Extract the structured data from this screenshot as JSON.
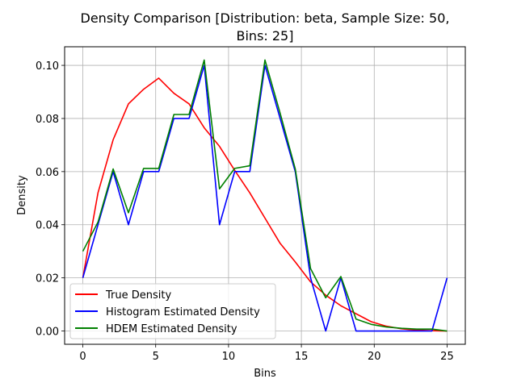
{
  "chart_data": {
    "type": "line",
    "title_line1": "Density Comparison [Distribution: beta, Sample Size: 50,",
    "title_line2": "Bins: 25]",
    "xlabel": "Bins",
    "ylabel": "Density",
    "xlim": [
      -1.25,
      26.25
    ],
    "ylim": [
      -0.005,
      0.107
    ],
    "x_ticks": [
      0,
      5,
      10,
      15,
      20,
      25
    ],
    "x_tick_labels": [
      "0",
      "5",
      "10",
      "15",
      "20",
      "25"
    ],
    "y_ticks": [
      0.0,
      0.02,
      0.04,
      0.06,
      0.08,
      0.1
    ],
    "y_tick_labels": [
      "0.00",
      "0.02",
      "0.04",
      "0.06",
      "0.08",
      "0.10"
    ],
    "grid": true,
    "legend_position": "lower-left",
    "series": [
      {
        "name": "True Density",
        "color": "#ff0000",
        "x": [
          0,
          1.04,
          2.08,
          3.13,
          4.17,
          5.21,
          6.25,
          7.29,
          8.33,
          9.38,
          10.42,
          11.46,
          12.5,
          13.54,
          14.58,
          15.63,
          16.67,
          17.71,
          18.75,
          19.79,
          20.83,
          21.88,
          22.92,
          23.96,
          25.0
        ],
        "y": [
          0.02,
          0.052,
          0.072,
          0.0855,
          0.091,
          0.0952,
          0.0895,
          0.0855,
          0.0765,
          0.0695,
          0.0605,
          0.052,
          0.0425,
          0.033,
          0.026,
          0.0185,
          0.0135,
          0.0095,
          0.0065,
          0.0035,
          0.0018,
          0.0008,
          0.0003,
          0.0001,
          0.0
        ]
      },
      {
        "name": "Histogram Estimated Density",
        "color": "#0000ff",
        "x": [
          0,
          1.04,
          2.08,
          3.13,
          4.17,
          5.21,
          6.25,
          7.29,
          8.33,
          9.38,
          10.42,
          11.46,
          12.5,
          13.54,
          14.58,
          15.63,
          16.67,
          17.71,
          18.75,
          19.79,
          20.83,
          21.88,
          22.92,
          23.96,
          25.0
        ],
        "y": [
          0.02,
          0.04,
          0.06,
          0.04,
          0.06,
          0.06,
          0.08,
          0.08,
          0.1,
          0.04,
          0.06,
          0.06,
          0.1,
          0.08,
          0.06,
          0.02,
          0.0,
          0.02,
          0.0,
          0.0,
          0.0,
          0.0,
          0.0,
          0.0,
          0.02
        ]
      },
      {
        "name": "HDEM Estimated Density",
        "color": "#008000",
        "x": [
          0,
          1.04,
          2.08,
          3.13,
          4.17,
          5.21,
          6.25,
          7.29,
          8.33,
          9.38,
          10.42,
          11.46,
          12.5,
          13.54,
          14.58,
          15.63,
          16.67,
          17.71,
          18.75,
          19.79,
          20.83,
          21.88,
          22.92,
          23.96,
          25.0
        ],
        "y": [
          0.03,
          0.041,
          0.061,
          0.0445,
          0.0612,
          0.0612,
          0.0815,
          0.0815,
          0.102,
          0.0535,
          0.0612,
          0.0622,
          0.102,
          0.082,
          0.061,
          0.0235,
          0.0125,
          0.0205,
          0.0045,
          0.0025,
          0.0015,
          0.001,
          0.0007,
          0.0007,
          0.0
        ]
      }
    ]
  }
}
